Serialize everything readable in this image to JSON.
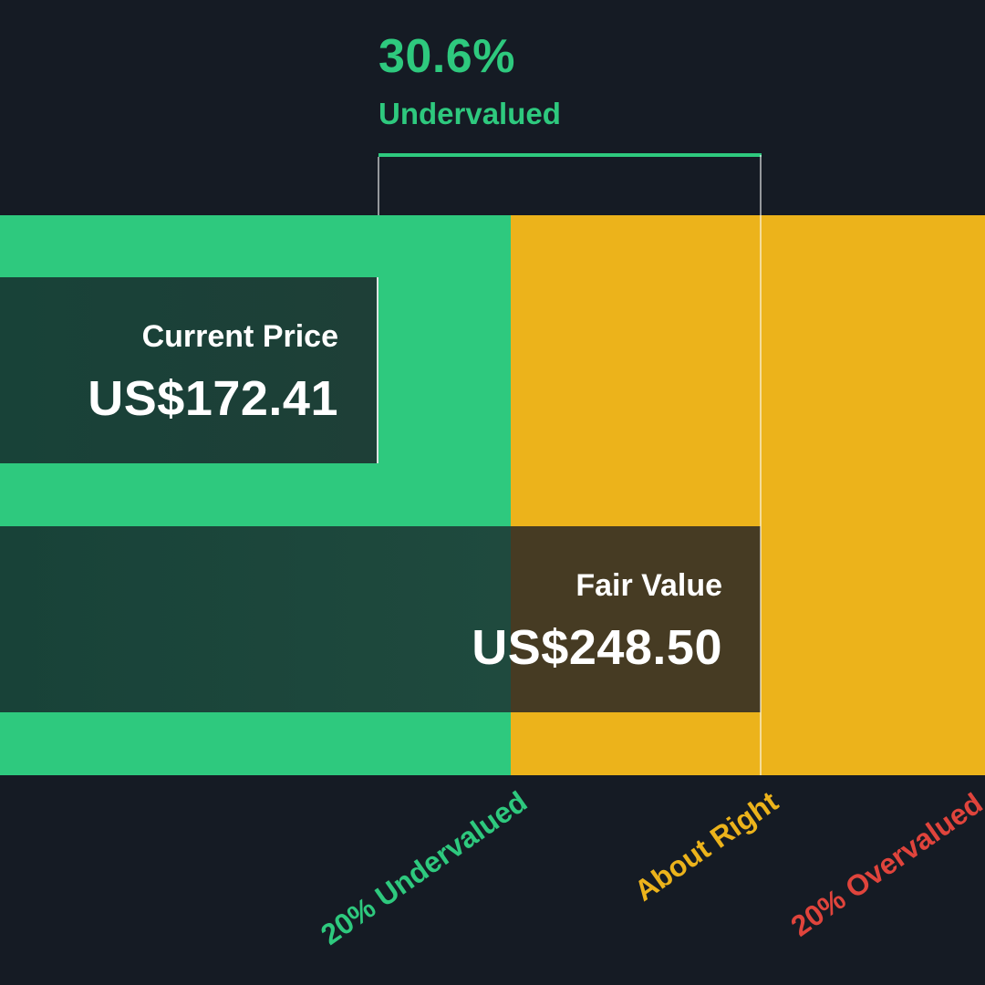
{
  "headline": {
    "percent": "30.6%",
    "status": "Undervalued"
  },
  "bars": {
    "current_price": {
      "label": "Current Price",
      "value": "US$172.41"
    },
    "fair_value": {
      "label": "Fair Value",
      "value": "US$248.50"
    }
  },
  "zones": {
    "undervalued": "20% Undervalued",
    "about_right": "About Right",
    "overvalued": "20% Overvalued"
  },
  "colors": {
    "background": "#151b24",
    "green": "#2ec97e",
    "amber": "#ecb31b",
    "red": "#e0443c",
    "white": "#ffffff"
  },
  "chart_data": {
    "type": "bar",
    "orientation": "horizontal",
    "categories": [
      "Current Price",
      "Fair Value"
    ],
    "values": [
      172.41,
      248.5
    ],
    "currency": "US$",
    "discount_percent": 30.6,
    "zones": [
      {
        "name": "20% Undervalued",
        "color": "#2ec97e"
      },
      {
        "name": "About Right",
        "color": "#ecb31b"
      },
      {
        "name": "20% Overvalued",
        "color": "#e0443c"
      }
    ]
  }
}
